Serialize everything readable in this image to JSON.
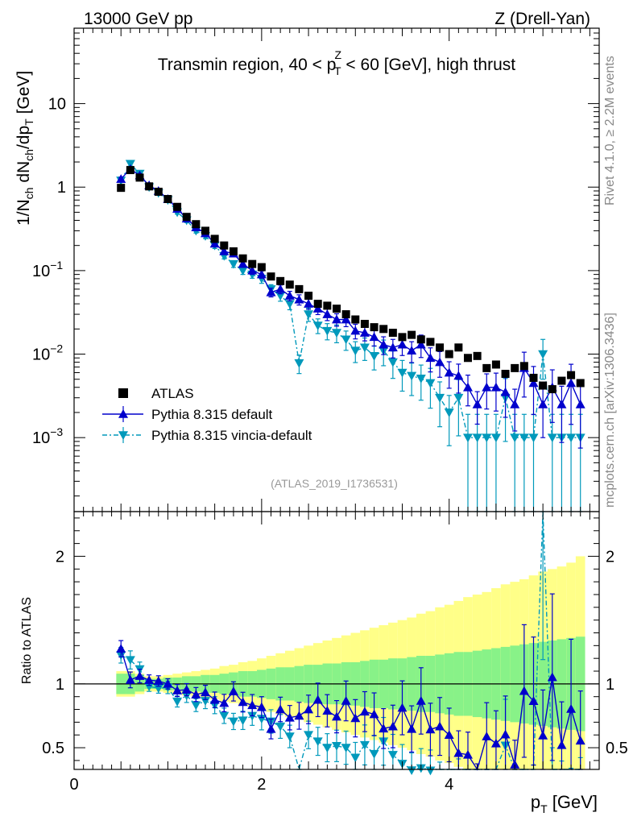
{
  "header": {
    "left": "13000 GeV pp",
    "right": "Z (Drell-Yan)"
  },
  "side_labels": {
    "rivet": "Rivet 4.1.0, ≥ 2.2M events",
    "mcplots": "mcplots.cern.ch [arXiv:1306.3436]"
  },
  "chart_data": {
    "type": "scatter",
    "title": "Transmin region, 40 < pTZ < 60 [GeV], high thrust",
    "title_parts": {
      "a": "Transmin region, 40 < p",
      "sub": "T",
      "sup": "Z",
      "b": " < 60 [GeV], high thrust"
    },
    "analysis_tag": "(ATLAS_2019_I1736531)",
    "xlabel": {
      "main": "p",
      "sub": "T",
      "unit": " [GeV]"
    },
    "ylabel": {
      "text": "1/Nch dNch/dpT [GeV]"
    },
    "ratio_ylabel": "Ratio to ATLAS",
    "xlim": [
      0,
      5.6
    ],
    "ylim": [
      0.00013,
      80
    ],
    "ratio_ylim": [
      0.33,
      2.35
    ],
    "x_ticks": [
      "0",
      "2",
      "4"
    ],
    "y_ticks": [
      "10^-3",
      "10^-2",
      "10^-1",
      "1",
      "10"
    ],
    "ratio_y_ticks": [
      "0.5",
      "1",
      "2"
    ],
    "ratio_y_ticks_right": [
      "0.5",
      "1",
      "2"
    ],
    "legend": [
      {
        "label": "ATLAS",
        "marker": "square",
        "color": "#000000"
      },
      {
        "label": "Pythia 8.315 default",
        "marker": "triangle-up",
        "color": "#0000cc"
      },
      {
        "label": "Pythia 8.315 vincia-default",
        "marker": "triangle-down",
        "color": "#0099bb"
      }
    ],
    "x": [
      0.5,
      0.6,
      0.7,
      0.8,
      0.9,
      1.0,
      1.1,
      1.2,
      1.3,
      1.4,
      1.5,
      1.6,
      1.7,
      1.8,
      1.9,
      2.0,
      2.1,
      2.2,
      2.3,
      2.4,
      2.5,
      2.6,
      2.7,
      2.8,
      2.9,
      3.0,
      3.1,
      3.2,
      3.3,
      3.4,
      3.5,
      3.6,
      3.7,
      3.8,
      3.9,
      4.0,
      4.1,
      4.2,
      4.3,
      4.4,
      4.5,
      4.6,
      4.7,
      4.8,
      4.9,
      5.0,
      5.1,
      5.2,
      5.3,
      5.4
    ],
    "series": [
      {
        "name": "ATLAS",
        "values": [
          0.98,
          1.6,
          1.3,
          1.02,
          0.88,
          0.72,
          0.58,
          0.44,
          0.36,
          0.3,
          0.24,
          0.2,
          0.17,
          0.14,
          0.12,
          0.11,
          0.085,
          0.075,
          0.068,
          0.06,
          0.05,
          0.04,
          0.038,
          0.035,
          0.03,
          0.026,
          0.023,
          0.021,
          0.02,
          0.018,
          0.016,
          0.017,
          0.015,
          0.014,
          0.012,
          0.01,
          0.012,
          0.009,
          0.0095,
          0.0068,
          0.0075,
          0.0058,
          0.0068,
          0.0072,
          0.0052,
          0.0042,
          0.0038,
          0.0048,
          0.0056,
          0.0045
        ],
        "ratio_band_inner": [
          0.08,
          0.08,
          0.06,
          0.04,
          0.04,
          0.05,
          0.05,
          0.06,
          0.06,
          0.07,
          0.07,
          0.08,
          0.09,
          0.1,
          0.1,
          0.11,
          0.12,
          0.13,
          0.13,
          0.14,
          0.15,
          0.15,
          0.16,
          0.16,
          0.17,
          0.17,
          0.18,
          0.19,
          0.19,
          0.2,
          0.2,
          0.21,
          0.22,
          0.22,
          0.23,
          0.24,
          0.25,
          0.25,
          0.26,
          0.27,
          0.28,
          0.29,
          0.3,
          0.31,
          0.32,
          0.33,
          0.34,
          0.35,
          0.36,
          0.37
        ],
        "ratio_band_outer": [
          0.1,
          0.1,
          0.08,
          0.06,
          0.06,
          0.07,
          0.08,
          0.09,
          0.1,
          0.11,
          0.12,
          0.14,
          0.15,
          0.17,
          0.18,
          0.2,
          0.22,
          0.24,
          0.26,
          0.28,
          0.3,
          0.32,
          0.34,
          0.36,
          0.38,
          0.4,
          0.42,
          0.44,
          0.46,
          0.48,
          0.5,
          0.52,
          0.55,
          0.57,
          0.6,
          0.62,
          0.65,
          0.68,
          0.7,
          0.72,
          0.75,
          0.78,
          0.8,
          0.82,
          0.85,
          0.88,
          0.9,
          0.92,
          0.95,
          1.0
        ]
      },
      {
        "name": "Pythia 8.315 default",
        "values": [
          1.25,
          1.65,
          1.38,
          1.05,
          0.9,
          0.72,
          0.55,
          0.42,
          0.33,
          0.28,
          0.21,
          0.17,
          0.16,
          0.12,
          0.1,
          0.09,
          0.055,
          0.06,
          0.05,
          0.045,
          0.04,
          0.035,
          0.03,
          0.026,
          0.026,
          0.019,
          0.018,
          0.016,
          0.013,
          0.012,
          0.013,
          0.011,
          0.013,
          0.009,
          0.008,
          0.006,
          0.0055,
          0.004,
          0.0025,
          0.004,
          0.004,
          0.0035,
          0.0025,
          0.0068,
          0.0045,
          0.0025,
          0.004,
          0.0025,
          0.0045,
          0.0025
        ],
        "errors": [
          0.05,
          0.06,
          0.05,
          0.04,
          0.04,
          0.04,
          0.05,
          0.05,
          0.06,
          0.06,
          0.07,
          0.08,
          0.08,
          0.09,
          0.1,
          0.1,
          0.12,
          0.12,
          0.13,
          0.14,
          0.14,
          0.15,
          0.16,
          0.17,
          0.18,
          0.2,
          0.2,
          0.22,
          0.24,
          0.25,
          0.26,
          0.28,
          0.3,
          0.32,
          0.34,
          0.35,
          0.38,
          0.4,
          0.42,
          0.45,
          0.48,
          0.5,
          0.52,
          0.55,
          0.58,
          0.6,
          0.62,
          0.65,
          0.68,
          0.7
        ]
      },
      {
        "name": "Pythia 8.315 vincia-default",
        "values": [
          1.2,
          1.9,
          1.45,
          1.0,
          0.85,
          0.7,
          0.5,
          0.4,
          0.3,
          0.26,
          0.2,
          0.15,
          0.12,
          0.1,
          0.09,
          0.08,
          0.06,
          0.05,
          0.04,
          0.0078,
          0.03,
          0.022,
          0.019,
          0.018,
          0.015,
          0.011,
          0.012,
          0.0095,
          0.011,
          0.008,
          0.006,
          0.0055,
          0.0051,
          0.0045,
          0.003,
          0.002,
          0.003,
          0.001,
          0.001,
          0.001,
          0.001,
          0.003,
          0.001,
          0.001,
          0.001,
          0.01,
          0.001,
          0.001,
          0.001,
          0.001
        ],
        "errors": [
          0.05,
          0.06,
          0.05,
          0.04,
          0.04,
          0.05,
          0.05,
          0.06,
          0.06,
          0.07,
          0.08,
          0.08,
          0.09,
          0.1,
          0.1,
          0.12,
          0.13,
          0.14,
          0.15,
          0.25,
          0.18,
          0.2,
          0.22,
          0.24,
          0.26,
          0.28,
          0.3,
          0.32,
          0.34,
          0.36,
          0.4,
          0.42,
          0.45,
          0.5,
          0.55,
          0.6,
          0.65,
          0.9,
          0.9,
          0.9,
          0.9,
          0.7,
          0.9,
          0.9,
          0.9,
          0.5,
          0.9,
          0.9,
          0.9,
          0.9
        ]
      }
    ]
  }
}
